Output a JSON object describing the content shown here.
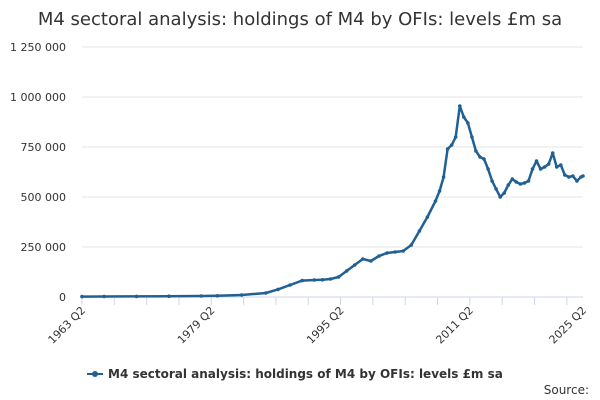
{
  "chart_data": {
    "type": "line",
    "title": "M4 sectoral analysis: holdings of M4 by OFIs: levels £m sa",
    "xlabel": "",
    "ylabel": "",
    "x_ticks": [
      "1963 Q2",
      "1979 Q2",
      "1995 Q2",
      "2011 Q2",
      "2025 Q2"
    ],
    "y_ticks": [
      "0",
      "250 000",
      "500 000",
      "750 000",
      "1 000 000",
      "1 250 000"
    ],
    "ylim": [
      0,
      1250000
    ],
    "xlim": [
      1963.25,
      2025.25
    ],
    "grid": true,
    "legend_position": "bottom",
    "series": [
      {
        "name": "M4 sectoral analysis: holdings of M4 by OFIs: levels £m sa",
        "color": "#206095",
        "x": [
          1963.25,
          1966,
          1970,
          1974,
          1978,
          1980,
          1983,
          1986,
          1987.5,
          1989,
          1990.5,
          1992,
          1993,
          1994,
          1995,
          1996,
          1997,
          1998,
          1999,
          2000,
          2001,
          2002,
          2003,
          2004,
          2005,
          2006,
          2007,
          2007.5,
          2008,
          2008.5,
          2009,
          2009.5,
          2010,
          2010.5,
          2011,
          2011.5,
          2012,
          2012.5,
          2013,
          2013.5,
          2014,
          2014.5,
          2015,
          2015.5,
          2016,
          2016.5,
          2017,
          2017.5,
          2018,
          2018.5,
          2019,
          2019.5,
          2020,
          2020.5,
          2021,
          2021.5,
          2022,
          2022.5,
          2023,
          2023.5,
          2024,
          2024.5,
          2025,
          2025.25
        ],
        "values": [
          2000,
          2500,
          3000,
          4000,
          5000,
          6000,
          10000,
          20000,
          38000,
          60000,
          82000,
          85000,
          86000,
          90000,
          100000,
          130000,
          160000,
          190000,
          180000,
          205000,
          220000,
          225000,
          230000,
          260000,
          330000,
          400000,
          480000,
          530000,
          600000,
          740000,
          760000,
          800000,
          955000,
          900000,
          870000,
          800000,
          730000,
          700000,
          690000,
          640000,
          580000,
          540000,
          500000,
          520000,
          560000,
          590000,
          575000,
          565000,
          570000,
          580000,
          640000,
          680000,
          640000,
          650000,
          665000,
          720000,
          650000,
          660000,
          610000,
          600000,
          605000,
          580000,
          600000,
          605000
        ]
      }
    ]
  },
  "source_label": "Source:"
}
